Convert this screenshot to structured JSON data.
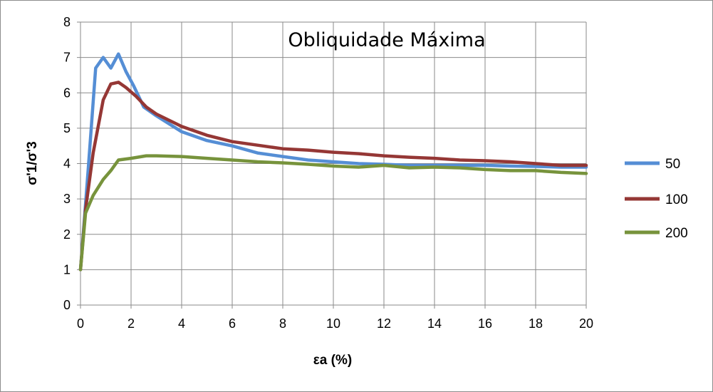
{
  "chart_data": {
    "type": "line",
    "title": "Obliquidade Máxima",
    "xlabel": "εa (%)",
    "ylabel": "σ'1/σ'3",
    "xlim": [
      0,
      20
    ],
    "ylim": [
      0,
      8
    ],
    "x_ticks": [
      "0",
      "2",
      "4",
      "6",
      "8",
      "10",
      "12",
      "14",
      "16",
      "18",
      "20"
    ],
    "y_ticks": [
      "0",
      "1",
      "2",
      "3",
      "4",
      "5",
      "6",
      "7",
      "8"
    ],
    "grid": true,
    "legend_position": "right",
    "series": [
      {
        "name": "50",
        "color": "#558ED5",
        "x": [
          0,
          0.3,
          0.6,
          0.9,
          1.2,
          1.5,
          1.8,
          2.1,
          2.5,
          3,
          4,
          5,
          6,
          7,
          8,
          9,
          10,
          11,
          12,
          13,
          14,
          15,
          16,
          17,
          18,
          19,
          20
        ],
        "y": [
          1.0,
          3.8,
          6.7,
          7.0,
          6.7,
          7.1,
          6.6,
          6.2,
          5.6,
          5.35,
          4.9,
          4.65,
          4.5,
          4.3,
          4.2,
          4.1,
          4.05,
          4.0,
          3.98,
          3.95,
          3.95,
          3.95,
          3.95,
          3.93,
          3.92,
          3.9,
          3.9
        ]
      },
      {
        "name": "100",
        "color": "#953735",
        "x": [
          0,
          0.2,
          0.5,
          0.9,
          1.2,
          1.5,
          1.8,
          2.2,
          2.6,
          3,
          4,
          5,
          6,
          7,
          8,
          9,
          10,
          11,
          12,
          13,
          14,
          15,
          16,
          17,
          18,
          19,
          20
        ],
        "y": [
          1.0,
          2.7,
          4.3,
          5.8,
          6.25,
          6.3,
          6.15,
          5.9,
          5.6,
          5.4,
          5.05,
          4.8,
          4.62,
          4.52,
          4.42,
          4.38,
          4.32,
          4.28,
          4.22,
          4.18,
          4.15,
          4.1,
          4.08,
          4.05,
          4.0,
          3.95,
          3.95
        ]
      },
      {
        "name": "200",
        "color": "#77933C",
        "x": [
          0,
          0.2,
          0.5,
          0.9,
          1.2,
          1.5,
          2,
          2.6,
          3,
          4,
          5,
          6,
          7,
          8,
          9,
          10,
          11,
          12,
          13,
          14,
          15,
          16,
          17,
          18,
          19,
          20
        ],
        "y": [
          1.0,
          2.6,
          3.1,
          3.55,
          3.8,
          4.1,
          4.15,
          4.22,
          4.22,
          4.2,
          4.15,
          4.1,
          4.05,
          4.02,
          3.98,
          3.93,
          3.9,
          3.95,
          3.88,
          3.9,
          3.88,
          3.83,
          3.8,
          3.8,
          3.75,
          3.72
        ]
      }
    ]
  }
}
